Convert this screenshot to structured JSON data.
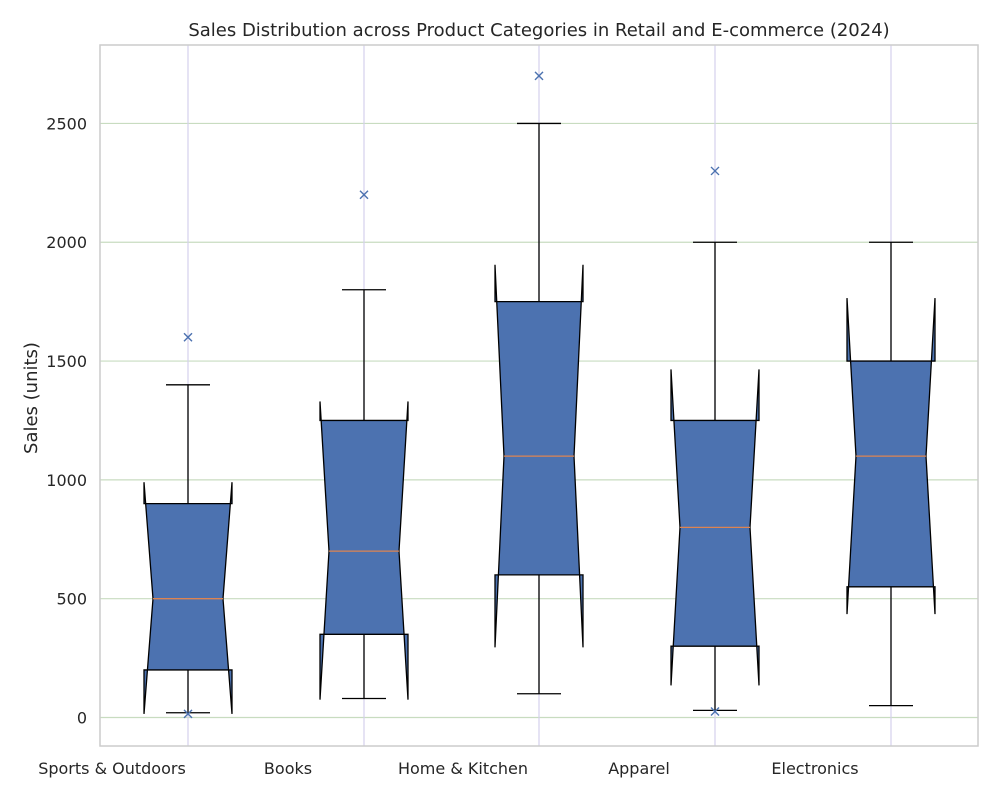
{
  "chart_data": {
    "type": "box",
    "title": "Sales Distribution across Product Categories in Retail and E-commerce (2024)",
    "xlabel": "",
    "ylabel": "Sales (units)",
    "ylim": [
      -120,
      2830
    ],
    "yticks": [
      0,
      500,
      1000,
      1500,
      2000,
      2500
    ],
    "grid": true,
    "notched": true,
    "categories": [
      "Sports & Outdoors",
      "Books",
      "Home & Kitchen",
      "Apparel",
      "Electronics"
    ],
    "boxes": [
      {
        "category": "Sports & Outdoors",
        "whisker_low": 20,
        "q1": 200,
        "median": 500,
        "q3": 900,
        "whisker_high": 1400,
        "notch_low": 15,
        "notch_high": 990,
        "outliers": [
          1600,
          15
        ]
      },
      {
        "category": "Books",
        "whisker_low": 80,
        "q1": 350,
        "median": 700,
        "q3": 1250,
        "whisker_high": 1800,
        "notch_low": 75,
        "notch_high": 1330,
        "outliers": [
          2200
        ]
      },
      {
        "category": "Home & Kitchen",
        "whisker_low": 100,
        "q1": 600,
        "median": 1100,
        "q3": 1750,
        "whisker_high": 2500,
        "notch_low": 295,
        "notch_high": 1905,
        "outliers": [
          2700
        ]
      },
      {
        "category": "Apparel",
        "whisker_low": 30,
        "q1": 300,
        "median": 800,
        "q3": 1250,
        "whisker_high": 2000,
        "notch_low": 135,
        "notch_high": 1465,
        "outliers": [
          2300,
          25
        ]
      },
      {
        "category": "Electronics",
        "whisker_low": 50,
        "q1": 550,
        "median": 1100,
        "q3": 1500,
        "whisker_high": 2000,
        "notch_low": 435,
        "notch_high": 1765,
        "outliers": []
      }
    ],
    "colors": {
      "box_fill": "#4c72b0",
      "median": "#dd8452",
      "outlier": "#4c72b0",
      "grid_y": "#c8dcc0",
      "grid_x": "#d4d0ec",
      "frame": "#cccccc"
    }
  }
}
